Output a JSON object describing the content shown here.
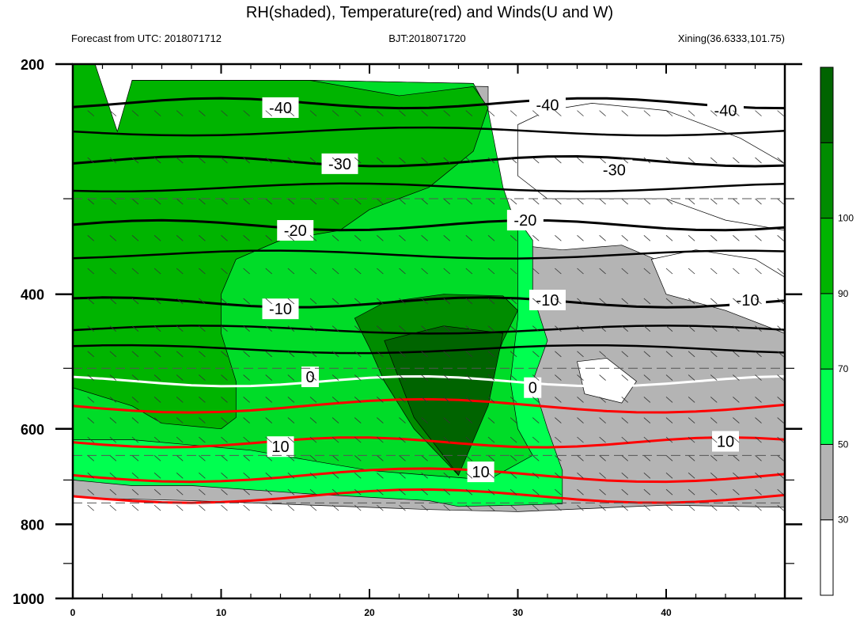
{
  "chart_data": {
    "type": "heatmap",
    "title": "RH(shaded), Temperature(red) and Winds(U and W)",
    "subtitle_left": "Forecast from UTC: 2018071712",
    "subtitle_center": "BJT:2018071720",
    "subtitle_right": "Xining(36.6333,101.75)",
    "xlim": [
      0,
      48
    ],
    "ylim": [
      1000,
      200
    ],
    "y_axis": "pressure-log-inverted",
    "x_ticks": [
      0,
      10,
      20,
      30,
      40
    ],
    "y_ticks": [
      200,
      400,
      600,
      800,
      1000
    ],
    "colorbar": {
      "levels": [
        30,
        50,
        70,
        90,
        100
      ],
      "colors": [
        "#ffffff",
        "#b4b4b4",
        "#00ff50",
        "#00dc28",
        "#00b400",
        "#008c00",
        "#006400"
      ]
    },
    "temperature_contours": [
      {
        "label": "-40",
        "color": "#000000"
      },
      {
        "label": "-30",
        "color": "#000000"
      },
      {
        "label": "-20",
        "color": "#000000"
      },
      {
        "label": "-10",
        "color": "#000000"
      },
      {
        "label": "0",
        "color": "#ffffff"
      },
      {
        "label": "10",
        "color": "#ff0000"
      }
    ],
    "contour_labels": [
      {
        "text": "-40",
        "x": 14,
        "p": 228
      },
      {
        "text": "-40",
        "x": 32,
        "p": 226
      },
      {
        "text": "-40",
        "x": 44,
        "p": 230
      },
      {
        "text": "-30",
        "x": 18,
        "p": 270
      },
      {
        "text": "-30",
        "x": 36.5,
        "p": 275
      },
      {
        "text": "-20",
        "x": 15,
        "p": 330
      },
      {
        "text": "-20",
        "x": 30.5,
        "p": 320
      },
      {
        "text": "-10",
        "x": 14,
        "p": 418
      },
      {
        "text": "-10",
        "x": 32,
        "p": 407
      },
      {
        "text": "-10",
        "x": 45.5,
        "p": 407
      },
      {
        "text": "0",
        "x": 16,
        "p": 513
      },
      {
        "text": "0",
        "x": 31,
        "p": 530
      },
      {
        "text": "10",
        "x": 14,
        "p": 633
      },
      {
        "text": "10",
        "x": 27.5,
        "p": 683
      },
      {
        "text": "10",
        "x": 44,
        "p": 623
      }
    ],
    "rh_regions": [
      {
        "level": 50,
        "x": [
          0,
          48
        ],
        "p": [
          200,
          760
        ]
      }
    ]
  }
}
